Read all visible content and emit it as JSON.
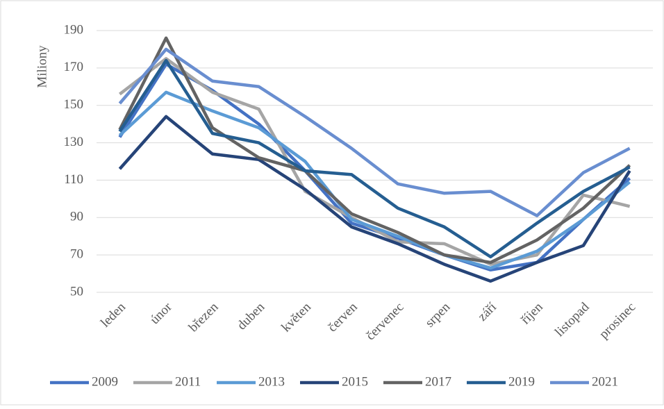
{
  "chart_data": {
    "type": "line",
    "y_label": "Miliony",
    "categories": [
      "leden",
      "únor",
      "březen",
      "duben",
      "květen",
      "červen",
      "červenec",
      "srpen",
      "září",
      "říjen",
      "listopad",
      "prosinec"
    ],
    "series": [
      {
        "name": "2009",
        "color": "#4472c4",
        "values": [
          133,
          172,
          158,
          140,
          115,
          87,
          79,
          70,
          62,
          66,
          89,
          111
        ]
      },
      {
        "name": "2011",
        "color": "#a5a5a5",
        "values": [
          156,
          175,
          157,
          148,
          104,
          90,
          77,
          76,
          65,
          70,
          102,
          96
        ]
      },
      {
        "name": "2013",
        "color": "#5b9bd5",
        "values": [
          134,
          157,
          147,
          138,
          120,
          89,
          80,
          70,
          63,
          72,
          89,
          109
        ]
      },
      {
        "name": "2015",
        "color": "#264478",
        "values": [
          116,
          144,
          124,
          121,
          105,
          85,
          76,
          65,
          56,
          66,
          75,
          115
        ]
      },
      {
        "name": "2017",
        "color": "#636363",
        "values": [
          137,
          186,
          138,
          122,
          115,
          92,
          82,
          70,
          66,
          78,
          95,
          118
        ]
      },
      {
        "name": "2019",
        "color": "#255e91",
        "values": [
          136,
          174,
          135,
          130,
          115,
          113,
          95,
          85,
          69,
          87,
          104,
          117
        ]
      },
      {
        "name": "2021",
        "color": "#698ed0",
        "values": [
          151,
          180,
          163,
          160,
          144,
          127,
          108,
          103,
          104,
          91,
          114,
          127
        ]
      }
    ],
    "ylim": [
      50,
      190
    ],
    "yticks": [
      50,
      70,
      90,
      110,
      130,
      150,
      170,
      190
    ],
    "grid": true,
    "legend": "bottom"
  }
}
